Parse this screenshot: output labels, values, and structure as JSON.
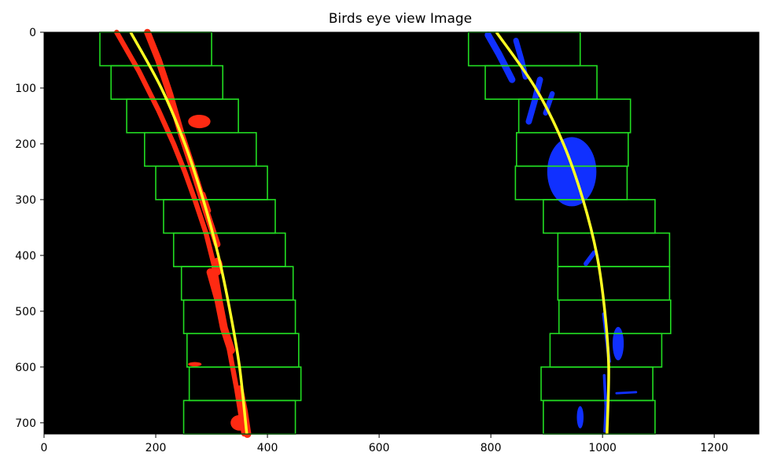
{
  "chart_data": {
    "type": "image",
    "title": "Birds eye view Image",
    "xlim": [
      0,
      1280
    ],
    "ylim": [
      720,
      0
    ],
    "x_ticks": [
      0,
      200,
      400,
      600,
      800,
      1000,
      1200
    ],
    "y_ticks": [
      0,
      100,
      200,
      300,
      400,
      500,
      600,
      700
    ],
    "background": "#000000",
    "colors": {
      "left_lane_pixels": "#ff2a12",
      "right_lane_pixels": "#1030ff",
      "window": "#22dd22",
      "fit_line": "#ffff22"
    },
    "windows": {
      "height": 60,
      "left": [
        {
          "x0": 100,
          "x1": 300
        },
        {
          "x0": 120,
          "x1": 320
        },
        {
          "x0": 148,
          "x1": 348
        },
        {
          "x0": 180,
          "x1": 380
        },
        {
          "x0": 200,
          "x1": 400
        },
        {
          "x0": 214,
          "x1": 414
        },
        {
          "x0": 232,
          "x1": 432
        },
        {
          "x0": 246,
          "x1": 446
        },
        {
          "x0": 250,
          "x1": 450
        },
        {
          "x0": 256,
          "x1": 456
        },
        {
          "x0": 260,
          "x1": 460
        },
        {
          "x0": 250,
          "x1": 450
        }
      ],
      "right": [
        {
          "x0": 760,
          "x1": 960
        },
        {
          "x0": 790,
          "x1": 990
        },
        {
          "x0": 850,
          "x1": 1050
        },
        {
          "x0": 846,
          "x1": 1046
        },
        {
          "x0": 844,
          "x1": 1044
        },
        {
          "x0": 894,
          "x1": 1094
        },
        {
          "x0": 920,
          "x1": 1120
        },
        {
          "x0": 920,
          "x1": 1120
        },
        {
          "x0": 922,
          "x1": 1122
        },
        {
          "x0": 906,
          "x1": 1106
        },
        {
          "x0": 890,
          "x1": 1090
        },
        {
          "x0": 894,
          "x1": 1094
        }
      ]
    },
    "fit_lines": {
      "left": [
        [
          155,
          0
        ],
        [
          210,
          100
        ],
        [
          252,
          200
        ],
        [
          285,
          300
        ],
        [
          312,
          400
        ],
        [
          333,
          500
        ],
        [
          350,
          600
        ],
        [
          363,
          720
        ]
      ],
      "right": [
        [
          810,
          0
        ],
        [
          880,
          100
        ],
        [
          930,
          200
        ],
        [
          965,
          300
        ],
        [
          990,
          400
        ],
        [
          1004,
          500
        ],
        [
          1011,
          600
        ],
        [
          1008,
          720
        ]
      ]
    },
    "lane_pixels": {
      "left_strips": [
        {
          "points": [
            [
              130,
              0
            ],
            [
              170,
              70
            ],
            [
              205,
              140
            ],
            [
              232,
              200
            ],
            [
              252,
              250
            ],
            [
              270,
              300
            ],
            [
              290,
              360
            ],
            [
              305,
              420
            ],
            [
              315,
              480
            ],
            [
              330,
              560
            ],
            [
              345,
              640
            ],
            [
              358,
              720
            ]
          ],
          "width": 9
        },
        {
          "points": [
            [
              185,
              0
            ],
            [
              205,
              50
            ],
            [
              225,
              110
            ],
            [
              245,
              180
            ],
            [
              268,
              250
            ],
            [
              290,
              320
            ],
            [
              310,
              380
            ]
          ],
          "width": 12
        },
        {
          "points": [
            [
              285,
              290
            ],
            [
              295,
              320
            ]
          ],
          "width": 8
        },
        {
          "points": [
            [
              298,
              430
            ],
            [
              312,
              480
            ],
            [
              322,
              530
            ],
            [
              335,
              570
            ]
          ],
          "width": 14
        },
        {
          "points": [
            [
              350,
              640
            ],
            [
              358,
              680
            ],
            [
              364,
              720
            ]
          ],
          "width": 14
        }
      ],
      "left_blobs": [
        {
          "x": 278,
          "y": 160,
          "rx": 20,
          "ry": 12
        },
        {
          "x": 310,
          "y": 420,
          "rx": 10,
          "ry": 16
        },
        {
          "x": 270,
          "y": 595,
          "rx": 12,
          "ry": 4
        },
        {
          "x": 350,
          "y": 700,
          "rx": 16,
          "ry": 14
        }
      ],
      "right_strips": [
        {
          "points": [
            [
              795,
              5
            ],
            [
              815,
              40
            ],
            [
              838,
              85
            ]
          ],
          "width": 12
        },
        {
          "points": [
            [
              845,
              15
            ],
            [
              855,
              50
            ],
            [
              862,
              80
            ]
          ],
          "width": 10
        },
        {
          "points": [
            [
              888,
              85
            ],
            [
              878,
              125
            ],
            [
              868,
              160
            ]
          ],
          "width": 11
        },
        {
          "points": [
            [
              910,
              110
            ],
            [
              898,
              145
            ]
          ],
          "width": 9
        },
        {
          "points": [
            [
              985,
              395
            ],
            [
              970,
              415
            ]
          ],
          "width": 8
        },
        {
          "points": [
            [
              1002,
              505
            ],
            [
              1008,
              555
            ],
            [
              1012,
              590
            ]
          ],
          "width": 6
        },
        {
          "points": [
            [
              1003,
              615
            ],
            [
              1006,
              670
            ],
            [
              1004,
              715
            ]
          ],
          "width": 5
        },
        {
          "points": [
            [
              1025,
              647
            ],
            [
              1060,
              645
            ]
          ],
          "width": 4
        }
      ],
      "right_blobs": [
        {
          "x": 945,
          "y": 250,
          "rx": 44,
          "ry": 62
        },
        {
          "x": 1028,
          "y": 558,
          "rx": 10,
          "ry": 30
        },
        {
          "x": 960,
          "y": 690,
          "rx": 6,
          "ry": 20
        }
      ]
    }
  }
}
